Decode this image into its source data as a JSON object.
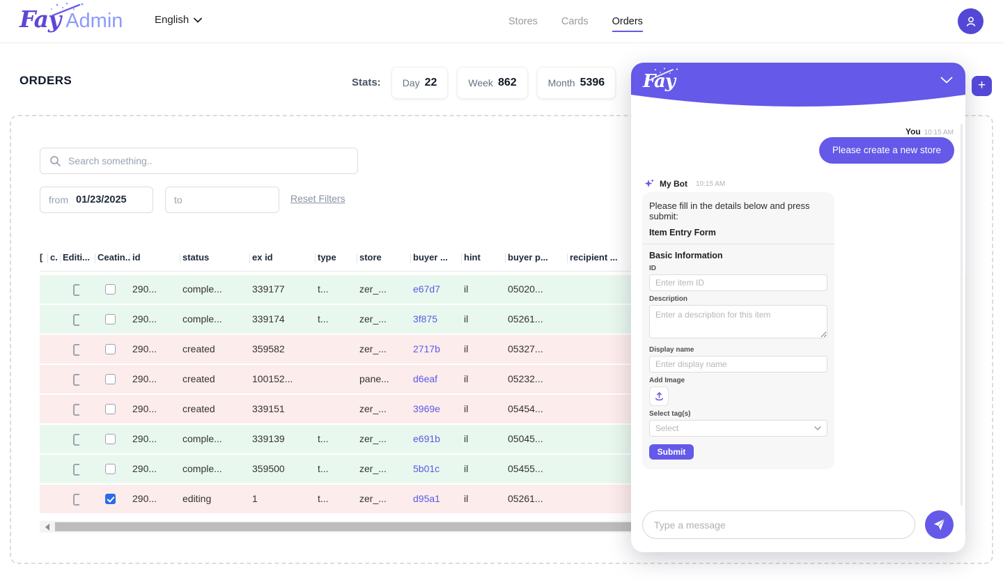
{
  "topbar": {
    "logo_fay": "Fay",
    "logo_admin": "Admin",
    "language": "English",
    "nav": [
      {
        "label": "Stores",
        "active": false
      },
      {
        "label": "Cards",
        "active": false
      },
      {
        "label": "Orders",
        "active": true
      }
    ]
  },
  "page": {
    "title": "ORDERS",
    "stats_label": "Stats:",
    "stats": [
      {
        "label": "Day",
        "value": "22"
      },
      {
        "label": "Week",
        "value": "862"
      },
      {
        "label": "Month",
        "value": "5396"
      }
    ],
    "add_button_label": "+"
  },
  "filters": {
    "search_placeholder": "Search something..",
    "from_label": "from",
    "from_value": "01/23/2025",
    "to_label": "to",
    "to_value": "",
    "reset_label": "Reset Filters"
  },
  "table": {
    "columns": [
      "[",
      "c.",
      "Editi...",
      "Ceatin...",
      "id",
      "status",
      "ex id",
      "type",
      "store",
      "buyer ...",
      "hint",
      "buyer p...",
      "recipient ..."
    ],
    "rows": [
      {
        "status_tone": "completed",
        "checked": false,
        "id": "290...",
        "status": "comple...",
        "ex_id": "339177",
        "type": "t...",
        "store": "zer_...",
        "buyer": "e67d7",
        "hint": "il",
        "buyer_p": "05020..."
      },
      {
        "status_tone": "completed",
        "checked": false,
        "id": "290...",
        "status": "comple...",
        "ex_id": "339174",
        "type": "t...",
        "store": "zer_...",
        "buyer": "3f875",
        "hint": "il",
        "buyer_p": "05261..."
      },
      {
        "status_tone": "created",
        "checked": false,
        "id": "290...",
        "status": "created",
        "ex_id": "359582",
        "type": "",
        "store": "zer_...",
        "buyer": "2717b",
        "hint": "il",
        "buyer_p": "05327..."
      },
      {
        "status_tone": "created",
        "checked": false,
        "id": "290...",
        "status": "created",
        "ex_id": "100152...",
        "type": "",
        "store": "pane...",
        "buyer": "d6eaf",
        "hint": "il",
        "buyer_p": "05232..."
      },
      {
        "status_tone": "created",
        "checked": false,
        "id": "290...",
        "status": "created",
        "ex_id": "339151",
        "type": "",
        "store": "zer_...",
        "buyer": "3969e",
        "hint": "il",
        "buyer_p": "05454..."
      },
      {
        "status_tone": "completed",
        "checked": false,
        "id": "290...",
        "status": "comple...",
        "ex_id": "339139",
        "type": "t...",
        "store": "zer_...",
        "buyer": "e691b",
        "hint": "il",
        "buyer_p": "05045..."
      },
      {
        "status_tone": "completed",
        "checked": false,
        "id": "290...",
        "status": "comple...",
        "ex_id": "359500",
        "type": "t...",
        "store": "zer_...",
        "buyer": "5b01c",
        "hint": "il",
        "buyer_p": "05455..."
      },
      {
        "status_tone": "editing",
        "checked": true,
        "id": "290...",
        "status": "editing",
        "ex_id": "1",
        "type": "t...",
        "store": "zer_...",
        "buyer": "d95a1",
        "hint": "il",
        "buyer_p": "05261..."
      }
    ]
  },
  "chat": {
    "logo": "Fay",
    "user_message": {
      "sender": "You",
      "time": "10:15 AM",
      "text": "Please create a new store"
    },
    "bot_message": {
      "sender": "My Bot",
      "time": "10:15 AM",
      "intro": "Please fill in the details below and press submit:",
      "form_title": "Item Entry Form",
      "section_title": "Basic Information",
      "fields": {
        "id_label": "ID",
        "id_placeholder": "Enter item ID",
        "description_label": "Description",
        "description_placeholder": "Enter a description for this item",
        "display_name_label": "Display name",
        "display_name_placeholder": "Enter display name",
        "add_image_label": "Add Image",
        "select_tags_label": "Select tag(s)",
        "select_placeholder": "Select"
      },
      "submit_label": "Submit"
    },
    "input_placeholder": "Type a message"
  },
  "colors": {
    "accent": "#6459e8",
    "accent_dark": "#5348d6",
    "row_completed_bg": "#e9f8ee",
    "row_created_bg": "#fdecec",
    "link": "#5a5ae6",
    "checkbox_checked": "#2b6be8"
  }
}
